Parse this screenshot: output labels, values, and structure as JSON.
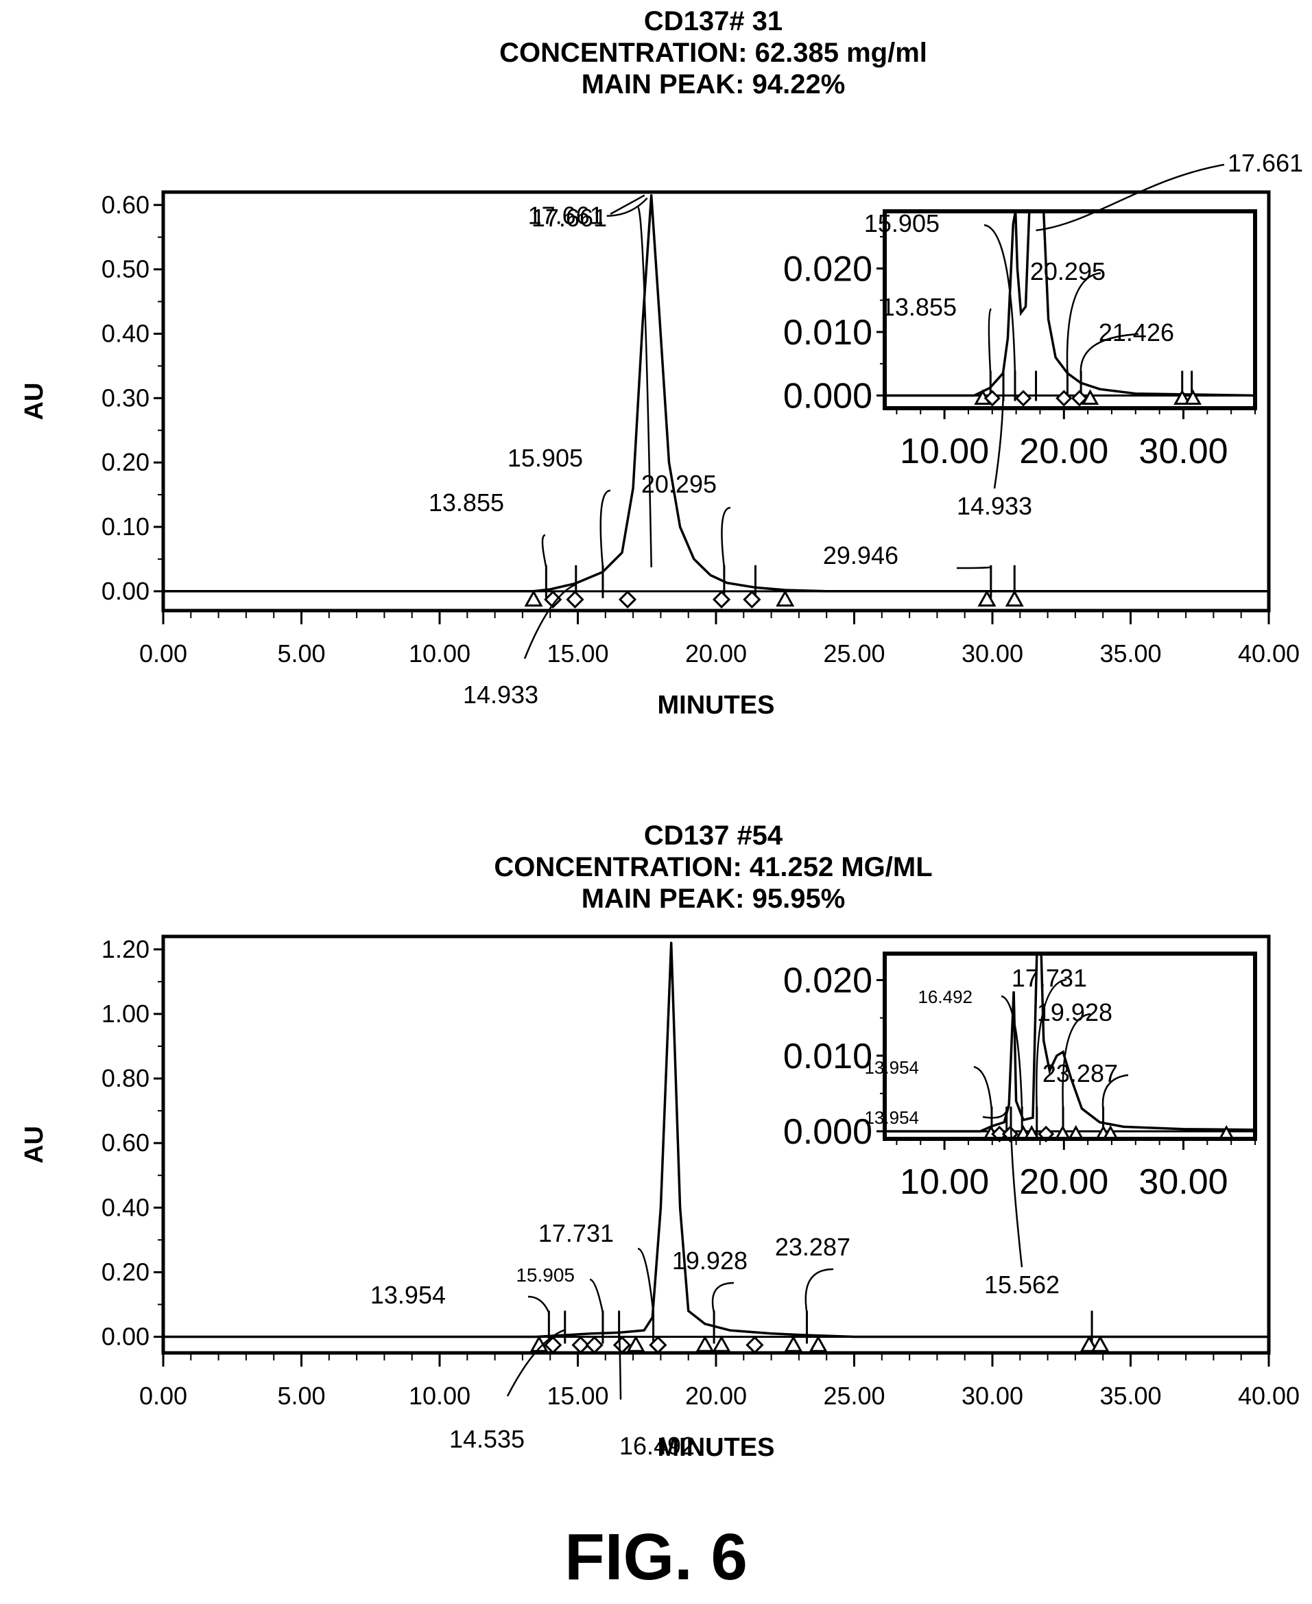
{
  "figure_label": "FIG. 6",
  "chart_data": [
    {
      "type": "line",
      "title_lines": [
        "CD137# 31",
        "CONCENTRATION: 62.385 mg/ml",
        "MAIN PEAK: 94.22%"
      ],
      "xlabel": "MINUTES",
      "ylabel": "AU",
      "xlim": [
        0,
        40
      ],
      "ylim": [
        -0.03,
        0.62
      ],
      "xticks": [
        0,
        5,
        10,
        15,
        20,
        25,
        30,
        35,
        40
      ],
      "xtick_labels": [
        "0.00",
        "5.00",
        "10.00",
        "15.00",
        "20.00",
        "25.00",
        "30.00",
        "35.00",
        "40.00"
      ],
      "yticks": [
        0,
        0.1,
        0.2,
        0.3,
        0.4,
        0.5,
        0.6
      ],
      "ytick_labels": [
        "0.00",
        "0.10",
        "0.20",
        "0.30",
        "0.40",
        "0.50",
        "0.60"
      ],
      "baseline": 0,
      "main_peak": {
        "x": 17.661,
        "y": 0.615,
        "label": "17.661"
      },
      "trace": [
        [
          0,
          0
        ],
        [
          13.4,
          0
        ],
        [
          14.0,
          0.003
        ],
        [
          14.9,
          0.012
        ],
        [
          15.9,
          0.03
        ],
        [
          16.6,
          0.06
        ],
        [
          17.0,
          0.16
        ],
        [
          17.35,
          0.42
        ],
        [
          17.661,
          0.615
        ],
        [
          17.95,
          0.43
        ],
        [
          18.3,
          0.2
        ],
        [
          18.7,
          0.1
        ],
        [
          19.2,
          0.05
        ],
        [
          19.8,
          0.025
        ],
        [
          20.4,
          0.013
        ],
        [
          21.4,
          0.006
        ],
        [
          22.5,
          0.002
        ],
        [
          24,
          0
        ],
        [
          40,
          0
        ]
      ],
      "peaks": [
        {
          "x": 13.855,
          "label": "13.855"
        },
        {
          "x": 14.933,
          "label": "14.933"
        },
        {
          "x": 15.905,
          "label": "15.905"
        },
        {
          "x": 17.661,
          "label": "17.661"
        },
        {
          "x": 20.295,
          "label": "20.295"
        },
        {
          "x": 29.946,
          "label": "29.946"
        }
      ],
      "extra_ticks": [
        21.426,
        30.8
      ],
      "markers": [
        {
          "x": 13.4,
          "shape": "triangle"
        },
        {
          "x": 14.1,
          "shape": "diamond"
        },
        {
          "x": 14.9,
          "shape": "diamond"
        },
        {
          "x": 16.8,
          "shape": "diamond"
        },
        {
          "x": 20.2,
          "shape": "diamond"
        },
        {
          "x": 21.3,
          "shape": "diamond"
        },
        {
          "x": 22.5,
          "shape": "triangle"
        },
        {
          "x": 29.8,
          "shape": "triangle"
        },
        {
          "x": 30.8,
          "shape": "triangle"
        }
      ],
      "inset": {
        "xlim": [
          5,
          36
        ],
        "ylim": [
          -0.002,
          0.029
        ],
        "xticks": [
          10,
          20,
          30
        ],
        "xtick_labels": [
          "10.00",
          "20.00",
          "30.00"
        ],
        "yticks": [
          0,
          0.01,
          0.02
        ],
        "ytick_labels": [
          "0.000",
          "0.010",
          "0.020"
        ],
        "trace": [
          [
            5,
            0
          ],
          [
            12.5,
            0
          ],
          [
            13.8,
            0.0012
          ],
          [
            14.9,
            0.0035
          ],
          [
            15.3,
            0.009
          ],
          [
            15.75,
            0.027
          ],
          [
            15.95,
            0.029
          ],
          [
            16.1,
            0.02
          ],
          [
            16.4,
            0.013
          ],
          [
            16.8,
            0.014
          ],
          [
            17.1,
            0.029
          ],
          [
            17.661,
            0.029
          ],
          [
            18.3,
            0.029
          ],
          [
            18.7,
            0.012
          ],
          [
            19.3,
            0.006
          ],
          [
            20.3,
            0.0035
          ],
          [
            21.4,
            0.002
          ],
          [
            23,
            0.001
          ],
          [
            26,
            0.0003
          ],
          [
            36,
            0
          ]
        ],
        "peaks": [
          {
            "x": 13.855,
            "label": "13.855"
          },
          {
            "x": 14.933,
            "label": "14.933"
          },
          {
            "x": 15.905,
            "label": "15.905"
          },
          {
            "x": 17.661,
            "label": "17.661"
          },
          {
            "x": 20.295,
            "label": "20.295"
          },
          {
            "x": 21.426,
            "label": "21.426"
          }
        ],
        "extra_ticks": [
          29.9,
          30.7
        ],
        "markers": [
          {
            "x": 13.2,
            "shape": "triangle"
          },
          {
            "x": 14.0,
            "shape": "diamond"
          },
          {
            "x": 16.6,
            "shape": "diamond"
          },
          {
            "x": 20.0,
            "shape": "diamond"
          },
          {
            "x": 21.3,
            "shape": "diamond"
          },
          {
            "x": 22.2,
            "shape": "triangle"
          },
          {
            "x": 29.9,
            "shape": "triangle"
          },
          {
            "x": 30.8,
            "shape": "triangle"
          }
        ]
      }
    },
    {
      "type": "line",
      "title_lines": [
        "CD137 #54",
        "CONCENTRATION: 41.252 MG/ML",
        "MAIN PEAK: 95.95%"
      ],
      "xlabel": "MINUTES",
      "ylabel": "AU",
      "xlim": [
        0,
        40
      ],
      "ylim": [
        -0.05,
        1.24
      ],
      "xticks": [
        0,
        5,
        10,
        15,
        20,
        25,
        30,
        35,
        40
      ],
      "xtick_labels": [
        "0.00",
        "5.00",
        "10.00",
        "15.00",
        "20.00",
        "25.00",
        "30.00",
        "35.00",
        "40.00"
      ],
      "yticks": [
        0,
        0.2,
        0.4,
        0.6,
        0.8,
        1.0,
        1.2
      ],
      "ytick_labels": [
        "0.00",
        "0.20",
        "0.40",
        "0.60",
        "0.80",
        "1.00",
        "1.20"
      ],
      "baseline": 0,
      "main_peak": {
        "x": 18.38,
        "y": 1.22
      },
      "trace": [
        [
          0,
          0
        ],
        [
          13.5,
          0
        ],
        [
          14.5,
          0.005
        ],
        [
          15.5,
          0.01
        ],
        [
          16.5,
          0.013
        ],
        [
          17.4,
          0.02
        ],
        [
          17.7,
          0.06
        ],
        [
          18.0,
          0.4
        ],
        [
          18.38,
          1.22
        ],
        [
          18.7,
          0.4
        ],
        [
          19.0,
          0.08
        ],
        [
          19.6,
          0.04
        ],
        [
          20.5,
          0.02
        ],
        [
          22,
          0.01
        ],
        [
          23.3,
          0.005
        ],
        [
          25,
          0
        ],
        [
          40,
          0
        ]
      ],
      "peaks": [
        {
          "x": 13.954,
          "label": "13.954"
        },
        {
          "x": 14.535,
          "label": "14.535"
        },
        {
          "x": 15.905,
          "label": "15.905"
        },
        {
          "x": 16.492,
          "label": "16.492"
        },
        {
          "x": 17.731,
          "label": "17.731"
        },
        {
          "x": 19.928,
          "label": "19.928"
        },
        {
          "x": 23.287,
          "label": "23.287"
        }
      ],
      "extra_ticks": [
        33.6
      ],
      "markers": [
        {
          "x": 13.6,
          "shape": "triangle"
        },
        {
          "x": 14.1,
          "shape": "diamond"
        },
        {
          "x": 15.1,
          "shape": "diamond"
        },
        {
          "x": 15.6,
          "shape": "diamond"
        },
        {
          "x": 16.6,
          "shape": "diamond"
        },
        {
          "x": 17.1,
          "shape": "triangle"
        },
        {
          "x": 17.9,
          "shape": "diamond"
        },
        {
          "x": 19.6,
          "shape": "triangle"
        },
        {
          "x": 20.2,
          "shape": "triangle"
        },
        {
          "x": 21.4,
          "shape": "diamond"
        },
        {
          "x": 22.8,
          "shape": "triangle"
        },
        {
          "x": 23.7,
          "shape": "triangle"
        },
        {
          "x": 33.5,
          "shape": "triangle"
        },
        {
          "x": 33.9,
          "shape": "triangle"
        }
      ],
      "inset": {
        "xlim": [
          5,
          36
        ],
        "ylim": [
          -0.001,
          0.0235
        ],
        "xticks": [
          10,
          20,
          30
        ],
        "xtick_labels": [
          "10.00",
          "20.00",
          "30.00"
        ],
        "yticks": [
          0,
          0.01,
          0.02
        ],
        "ytick_labels": [
          "0.000",
          "0.010",
          "0.020"
        ],
        "trace": [
          [
            5,
            0
          ],
          [
            13,
            0
          ],
          [
            14.0,
            0.0007
          ],
          [
            15.0,
            0.0012
          ],
          [
            15.4,
            0.0035
          ],
          [
            15.8,
            0.0185
          ],
          [
            16.0,
            0.004
          ],
          [
            16.6,
            0.0015
          ],
          [
            17.4,
            0.0018
          ],
          [
            17.5,
            0.008
          ],
          [
            17.731,
            0.0235
          ],
          [
            18.1,
            0.0235
          ],
          [
            18.3,
            0.012
          ],
          [
            18.8,
            0.008
          ],
          [
            19.4,
            0.01
          ],
          [
            19.928,
            0.0105
          ],
          [
            20.6,
            0.007
          ],
          [
            21.5,
            0.003
          ],
          [
            23,
            0.0012
          ],
          [
            25,
            0.0006
          ],
          [
            30,
            0.0003
          ],
          [
            36,
            0.0002
          ]
        ],
        "peaks": [
          {
            "x": 13.954,
            "label": "13.954"
          },
          {
            "x": 15.2,
            "label": "13.954"
          },
          {
            "x": 15.562,
            "label": "15.562"
          },
          {
            "x": 16.492,
            "label": "16.492"
          },
          {
            "x": 17.731,
            "label": "17.731"
          },
          {
            "x": 19.928,
            "label": "19.928"
          },
          {
            "x": 23.287,
            "label": "23.287"
          }
        ],
        "extra_ticks": [],
        "markers": [
          {
            "x": 13.9,
            "shape": "triangle"
          },
          {
            "x": 14.6,
            "shape": "diamond"
          },
          {
            "x": 15.5,
            "shape": "diamond"
          },
          {
            "x": 16.6,
            "shape": "triangle"
          },
          {
            "x": 17.3,
            "shape": "triangle"
          },
          {
            "x": 18.5,
            "shape": "diamond"
          },
          {
            "x": 19.9,
            "shape": "triangle"
          },
          {
            "x": 21.0,
            "shape": "triangle"
          },
          {
            "x": 23.3,
            "shape": "triangle"
          },
          {
            "x": 23.9,
            "shape": "triangle"
          },
          {
            "x": 33.6,
            "shape": "triangle"
          }
        ]
      }
    }
  ]
}
